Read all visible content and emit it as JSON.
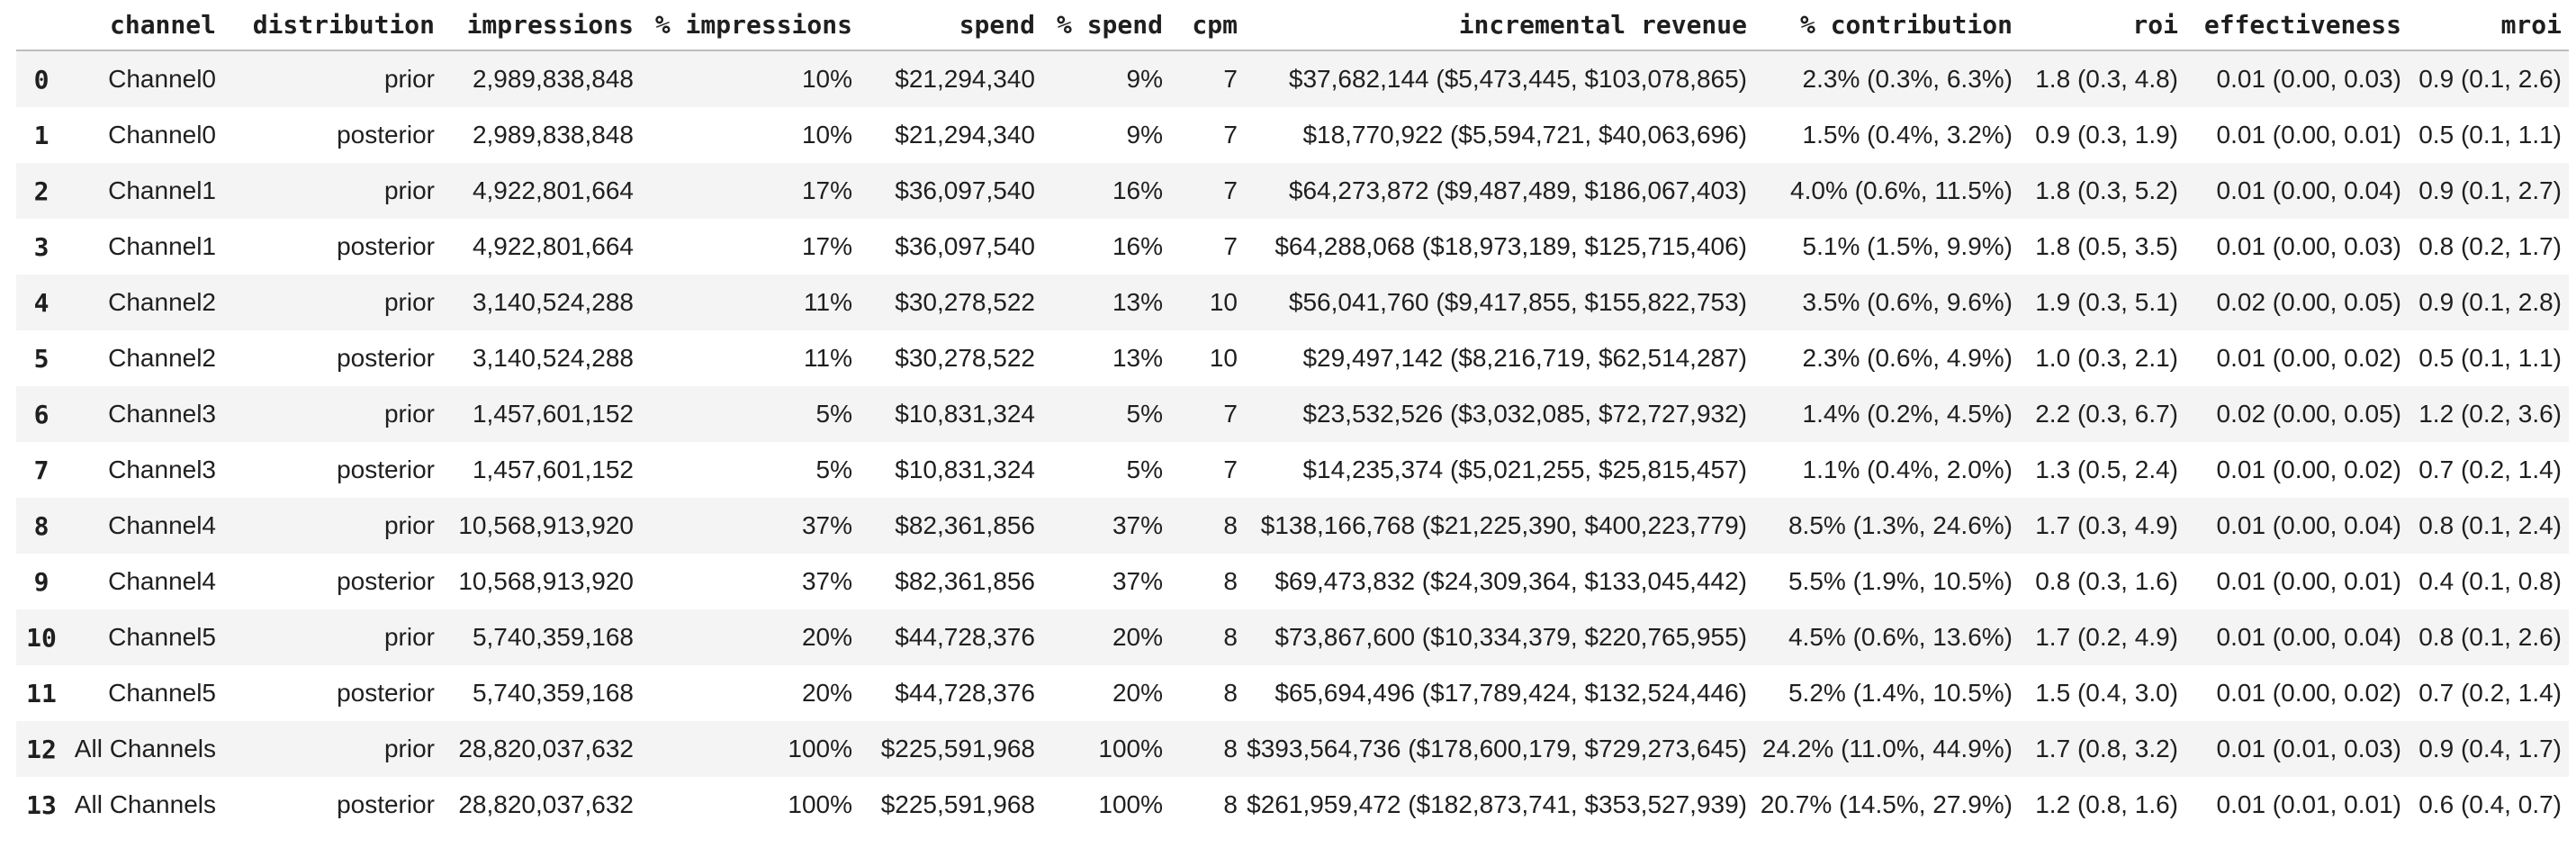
{
  "colors": {
    "background": "#ffffff",
    "row_stripe": "#f4f4f4",
    "header_border": "#bdbdbd",
    "text": "#1f1f1f"
  },
  "chart_data": {
    "type": "table",
    "title": "",
    "layout_hints": {
      "striped_rows": "even pandas index shaded light gray",
      "alignment": "all data columns right-aligned, row index centered",
      "header_style": "bold monospace with bottom border"
    },
    "columns": [
      "channel",
      "distribution",
      "impressions",
      "% impressions",
      "spend",
      "% spend",
      "cpm",
      "incremental revenue",
      "% contribution",
      "roi",
      "effectiveness",
      "mroi"
    ],
    "index": [
      "0",
      "1",
      "2",
      "3",
      "4",
      "5",
      "6",
      "7",
      "8",
      "9",
      "10",
      "11",
      "12",
      "13"
    ],
    "rows": [
      [
        "Channel0",
        "prior",
        "2,989,838,848",
        "10%",
        "$21,294,340",
        "9%",
        "7",
        "$37,682,144 ($5,473,445, $103,078,865)",
        "2.3% (0.3%, 6.3%)",
        "1.8 (0.3, 4.8)",
        "0.01 (0.00, 0.03)",
        "0.9 (0.1, 2.6)"
      ],
      [
        "Channel0",
        "posterior",
        "2,989,838,848",
        "10%",
        "$21,294,340",
        "9%",
        "7",
        "$18,770,922 ($5,594,721, $40,063,696)",
        "1.5% (0.4%, 3.2%)",
        "0.9 (0.3, 1.9)",
        "0.01 (0.00, 0.01)",
        "0.5 (0.1, 1.1)"
      ],
      [
        "Channel1",
        "prior",
        "4,922,801,664",
        "17%",
        "$36,097,540",
        "16%",
        "7",
        "$64,273,872 ($9,487,489, $186,067,403)",
        "4.0% (0.6%, 11.5%)",
        "1.8 (0.3, 5.2)",
        "0.01 (0.00, 0.04)",
        "0.9 (0.1, 2.7)"
      ],
      [
        "Channel1",
        "posterior",
        "4,922,801,664",
        "17%",
        "$36,097,540",
        "16%",
        "7",
        "$64,288,068 ($18,973,189, $125,715,406)",
        "5.1% (1.5%, 9.9%)",
        "1.8 (0.5, 3.5)",
        "0.01 (0.00, 0.03)",
        "0.8 (0.2, 1.7)"
      ],
      [
        "Channel2",
        "prior",
        "3,140,524,288",
        "11%",
        "$30,278,522",
        "13%",
        "10",
        "$56,041,760 ($9,417,855, $155,822,753)",
        "3.5% (0.6%, 9.6%)",
        "1.9 (0.3, 5.1)",
        "0.02 (0.00, 0.05)",
        "0.9 (0.1, 2.8)"
      ],
      [
        "Channel2",
        "posterior",
        "3,140,524,288",
        "11%",
        "$30,278,522",
        "13%",
        "10",
        "$29,497,142 ($8,216,719, $62,514,287)",
        "2.3% (0.6%, 4.9%)",
        "1.0 (0.3, 2.1)",
        "0.01 (0.00, 0.02)",
        "0.5 (0.1, 1.1)"
      ],
      [
        "Channel3",
        "prior",
        "1,457,601,152",
        "5%",
        "$10,831,324",
        "5%",
        "7",
        "$23,532,526 ($3,032,085, $72,727,932)",
        "1.4% (0.2%, 4.5%)",
        "2.2 (0.3, 6.7)",
        "0.02 (0.00, 0.05)",
        "1.2 (0.2, 3.6)"
      ],
      [
        "Channel3",
        "posterior",
        "1,457,601,152",
        "5%",
        "$10,831,324",
        "5%",
        "7",
        "$14,235,374 ($5,021,255, $25,815,457)",
        "1.1% (0.4%, 2.0%)",
        "1.3 (0.5, 2.4)",
        "0.01 (0.00, 0.02)",
        "0.7 (0.2, 1.4)"
      ],
      [
        "Channel4",
        "prior",
        "10,568,913,920",
        "37%",
        "$82,361,856",
        "37%",
        "8",
        "$138,166,768 ($21,225,390, $400,223,779)",
        "8.5% (1.3%, 24.6%)",
        "1.7 (0.3, 4.9)",
        "0.01 (0.00, 0.04)",
        "0.8 (0.1, 2.4)"
      ],
      [
        "Channel4",
        "posterior",
        "10,568,913,920",
        "37%",
        "$82,361,856",
        "37%",
        "8",
        "$69,473,832 ($24,309,364, $133,045,442)",
        "5.5% (1.9%, 10.5%)",
        "0.8 (0.3, 1.6)",
        "0.01 (0.00, 0.01)",
        "0.4 (0.1, 0.8)"
      ],
      [
        "Channel5",
        "prior",
        "5,740,359,168",
        "20%",
        "$44,728,376",
        "20%",
        "8",
        "$73,867,600 ($10,334,379, $220,765,955)",
        "4.5% (0.6%, 13.6%)",
        "1.7 (0.2, 4.9)",
        "0.01 (0.00, 0.04)",
        "0.8 (0.1, 2.6)"
      ],
      [
        "Channel5",
        "posterior",
        "5,740,359,168",
        "20%",
        "$44,728,376",
        "20%",
        "8",
        "$65,694,496 ($17,789,424, $132,524,446)",
        "5.2% (1.4%, 10.5%)",
        "1.5 (0.4, 3.0)",
        "0.01 (0.00, 0.02)",
        "0.7 (0.2, 1.4)"
      ],
      [
        "All Channels",
        "prior",
        "28,820,037,632",
        "100%",
        "$225,591,968",
        "100%",
        "8",
        "$393,564,736 ($178,600,179, $729,273,645)",
        "24.2% (11.0%, 44.9%)",
        "1.7 (0.8, 3.2)",
        "0.01 (0.01, 0.03)",
        "0.9 (0.4, 1.7)"
      ],
      [
        "All Channels",
        "posterior",
        "28,820,037,632",
        "100%",
        "$225,591,968",
        "100%",
        "8",
        "$261,959,472 ($182,873,741, $353,527,939)",
        "20.7% (14.5%, 27.9%)",
        "1.2 (0.8, 1.6)",
        "0.01 (0.01, 0.01)",
        "0.6 (0.4, 0.7)"
      ]
    ]
  }
}
